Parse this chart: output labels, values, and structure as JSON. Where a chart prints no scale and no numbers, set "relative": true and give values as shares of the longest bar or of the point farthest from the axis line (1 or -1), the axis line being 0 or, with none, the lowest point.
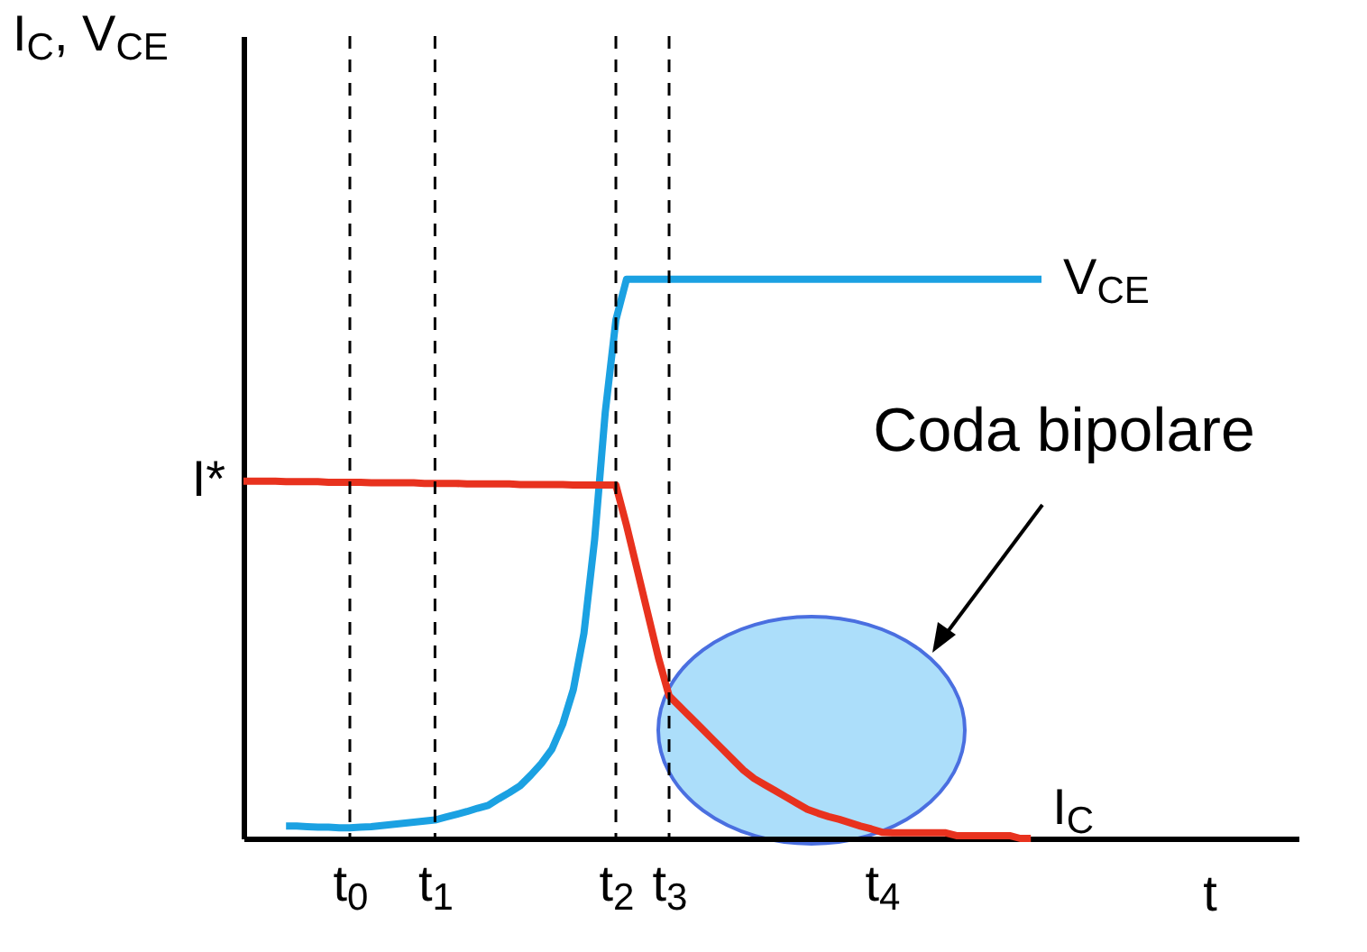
{
  "chart_data": {
    "type": "line",
    "relative": true,
    "ylabel": "I$_{C}$, V$_{CE}$",
    "xlabel": "t",
    "tick_labels": "x",
    "categories": [
      null,
      null,
      null,
      null,
      null,
      null,
      null,
      null,
      null,
      null,
      "t$_{0}$",
      null,
      null,
      null,
      null,
      null,
      null,
      null,
      "t$_{1}$",
      null,
      null,
      null,
      null,
      null,
      null,
      null,
      null,
      null,
      null,
      null,
      null,
      null,
      null,
      null,
      null,
      "t$_{2}$",
      null,
      null,
      null,
      null,
      "t$_{3}$",
      null,
      null,
      null,
      null,
      null,
      null,
      null,
      null,
      null,
      null,
      null,
      null,
      null,
      null,
      null,
      null,
      null,
      null,
      null,
      "t$_{4}$",
      null,
      null,
      null,
      null,
      null,
      null,
      null,
      null,
      null,
      null,
      null,
      null,
      null,
      null,
      null
    ],
    "series": [
      {
        "name": "V$_{CE}$",
        "color": "#1ba1e2",
        "values": [
          null,
          null,
          null,
          null,
          0.022,
          0.022,
          0.021,
          0.02,
          0.02,
          0.019,
          0.019,
          0.02,
          0.021,
          0.023,
          0.025,
          0.027,
          0.029,
          0.031,
          0.033,
          0.038,
          0.043,
          0.048,
          0.054,
          0.059,
          0.071,
          0.082,
          0.094,
          0.113,
          0.134,
          0.16,
          0.204,
          0.266,
          0.367,
          0.534,
          0.762,
          0.927,
          1,
          1,
          1,
          1,
          1,
          1,
          1,
          1,
          1,
          1,
          1,
          1,
          1,
          1,
          1,
          1,
          1,
          1,
          1,
          1,
          1,
          1,
          1,
          1,
          1,
          1,
          1,
          1,
          1,
          1,
          1,
          1,
          1,
          1,
          1,
          1,
          1,
          1,
          1,
          1
        ]
      },
      {
        "name": "I$_{C}$",
        "color": "#e8321e",
        "values": [
          0.639,
          0.639,
          0.639,
          0.639,
          0.638,
          0.638,
          0.638,
          0.638,
          0.637,
          0.637,
          0.637,
          0.637,
          0.636,
          0.636,
          0.636,
          0.636,
          0.636,
          0.635,
          0.635,
          0.635,
          0.635,
          0.634,
          0.634,
          0.634,
          0.634,
          0.634,
          0.633,
          0.633,
          0.633,
          0.633,
          0.633,
          0.632,
          0.632,
          0.632,
          0.632,
          0.632,
          0.56,
          0.481,
          0.402,
          0.323,
          0.255,
          0.236,
          0.217,
          0.198,
          0.179,
          0.16,
          0.141,
          0.122,
          0.107,
          0.096,
          0.085,
          0.074,
          0.063,
          0.052,
          0.045,
          0.039,
          0.034,
          0.028,
          0.022,
          0.017,
          0.011,
          0.01,
          0.01,
          0.01,
          0.01,
          0.01,
          0.01,
          0.005,
          0.005,
          0.005,
          0.005,
          0.005,
          0.005,
          0,
          0,
          null
        ]
      }
    ],
    "ref_lines": [
      {
        "axis": "x",
        "value": "t$_{0}$",
        "color": "#000000",
        "line_style": "dashed"
      },
      {
        "axis": "x",
        "value": "t$_{1}$",
        "color": "#000000",
        "line_style": "dashed"
      },
      {
        "axis": "x",
        "value": "t$_{2}$",
        "color": "#000000",
        "line_style": "dashed"
      },
      {
        "axis": "x",
        "value": "t$_{3}$",
        "color": "#000000",
        "line_style": "dashed"
      }
    ],
    "annotations": [
      "I*",
      "Coda bipolare"
    ],
    "marker": "none",
    "line_style": "solid"
  }
}
